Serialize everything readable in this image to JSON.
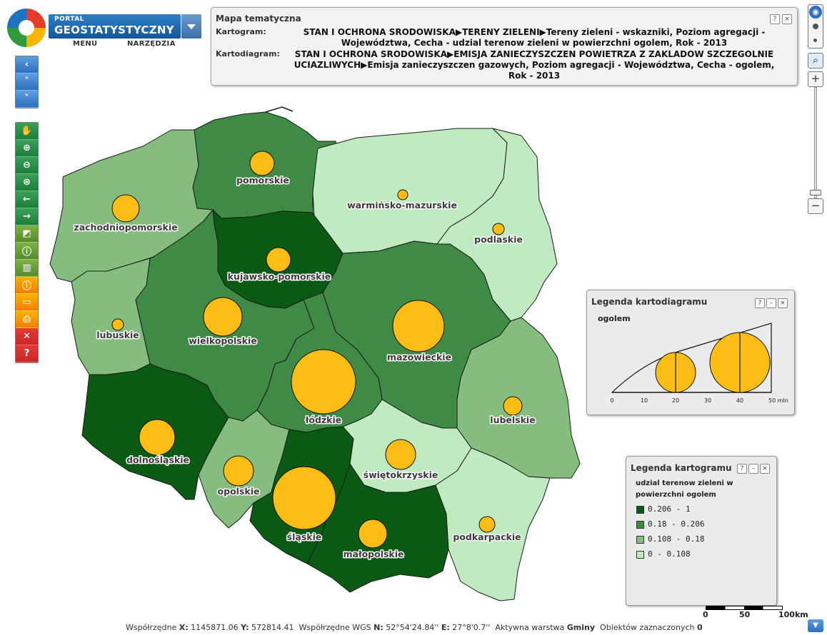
{
  "header": {
    "logo_small": "PORTAL",
    "logo_big": "GEOSTATYSTYCZNY",
    "menu_label": "MENU",
    "tools_label": "NARZĘDZIA"
  },
  "title_panel": {
    "title": "Mapa tematyczna",
    "kartogram_label": "Kartogram:",
    "kartogram_text": "STAN I OCHRONA SRODOWISKA▶TERENY ZIELENI▶Tereny zieleni - wskazniki, Poziom agregacji - Województwa, Cecha - udzial terenow zieleni w powierzchni ogolem, Rok - 2013",
    "kartodiagram_label": "Kartodiagram:",
    "kartodiagram_text": "STAN I OCHRONA SRODOWISKA▶EMISJA ZANIECZYSZCZEN POWIETRZA Z ZAKLADOW SZCZEGOLNIE UCIAZLIWYCH▶Emisja zanieczyszczen gazowych, Poziom agregacji - Województwa, Cecha - ogolem, Rok - 2013",
    "help_icon": "?",
    "close_icon": "×"
  },
  "map": {
    "fill_colors": {
      "c1": "#0b5a14",
      "c2": "#3f8a45",
      "c3": "#85bd7e",
      "c4": "#c0eac0"
    },
    "bubble_color": "#fdbd14",
    "regions": [
      {
        "name": "pomorskie",
        "class": "c2"
      },
      {
        "name": "warmińsko-mazurskie",
        "class": "c4"
      },
      {
        "name": "podlaskie",
        "class": "c4"
      },
      {
        "name": "zachodniopomorskie",
        "class": "c3"
      },
      {
        "name": "kujawsko-pomorskie",
        "class": "c1"
      },
      {
        "name": "mazowieckie",
        "class": "c2"
      },
      {
        "name": "lubuskie",
        "class": "c3"
      },
      {
        "name": "wielkopolskie",
        "class": "c2"
      },
      {
        "name": "łódzkie",
        "class": "c2"
      },
      {
        "name": "lubelskie",
        "class": "c3"
      },
      {
        "name": "dolnośląskie",
        "class": "c1"
      },
      {
        "name": "opolskie",
        "class": "c3"
      },
      {
        "name": "śląskie",
        "class": "c1"
      },
      {
        "name": "świętokrzyskie",
        "class": "c4"
      },
      {
        "name": "małopolskie",
        "class": "c1"
      },
      {
        "name": "podkarpackie",
        "class": "c4"
      }
    ]
  },
  "legend_diagram": {
    "title": "Legenda kartodiagramu",
    "series_label": "ogolem",
    "ticks": [
      "0",
      "10",
      "20",
      "30",
      "40",
      "50 mln"
    ],
    "help_icon": "?",
    "minimize_icon": "–",
    "close_icon": "×"
  },
  "legend_choropleth": {
    "title": "Legenda kartogramu",
    "subtitle_line1": "udzial terenow zieleni w",
    "subtitle_line2": "powierzchni ogolem",
    "help_icon": "?",
    "minimize_icon": "–",
    "close_icon": "×",
    "classes": [
      {
        "label": "0.206 - 1",
        "color": "#0b5a14"
      },
      {
        "label": "0.18 - 0.206",
        "color": "#3f8a45"
      },
      {
        "label": "0.108 - 0.18",
        "color": "#85bd7e"
      },
      {
        "label": "0 - 0.108",
        "color": "#c0eac0"
      }
    ]
  },
  "scale_bar": {
    "labels": [
      "0",
      "50",
      "100km"
    ]
  },
  "toolbar": {
    "nav": [
      "back-arrow-icon",
      "up-arrow-icon",
      "down-arrow-icon"
    ],
    "map_tools": [
      "pan-hand-icon",
      "zoom-in-icon",
      "zoom-out-icon",
      "zoom-extent-icon",
      "previous-view-icon",
      "next-view-icon"
    ],
    "analysis": [
      "symbology-icon",
      "info-stats-icon",
      "chart-icon"
    ],
    "info": [
      "info-icon",
      "window-icon",
      "print-icon"
    ],
    "misc": [
      "flag-uk-icon",
      "help-icon"
    ]
  },
  "zoom": {
    "plus": "+",
    "minus": "−"
  },
  "status": {
    "coords_label": "Współrzędne",
    "x_label": "X:",
    "x_value": "1145871.06",
    "y_label": "Y:",
    "y_value": "572814.41",
    "wgs_label": "Współrzędne WGS",
    "n_label": "N:",
    "n_value": "52°54'24.84''",
    "e_label": "E:",
    "e_value": "27°8'0.7''",
    "layer_label": "Aktywna warstwa",
    "layer_value": "Gminy",
    "selected_label": "Obiektów zaznaczonych",
    "selected_value": "0"
  }
}
